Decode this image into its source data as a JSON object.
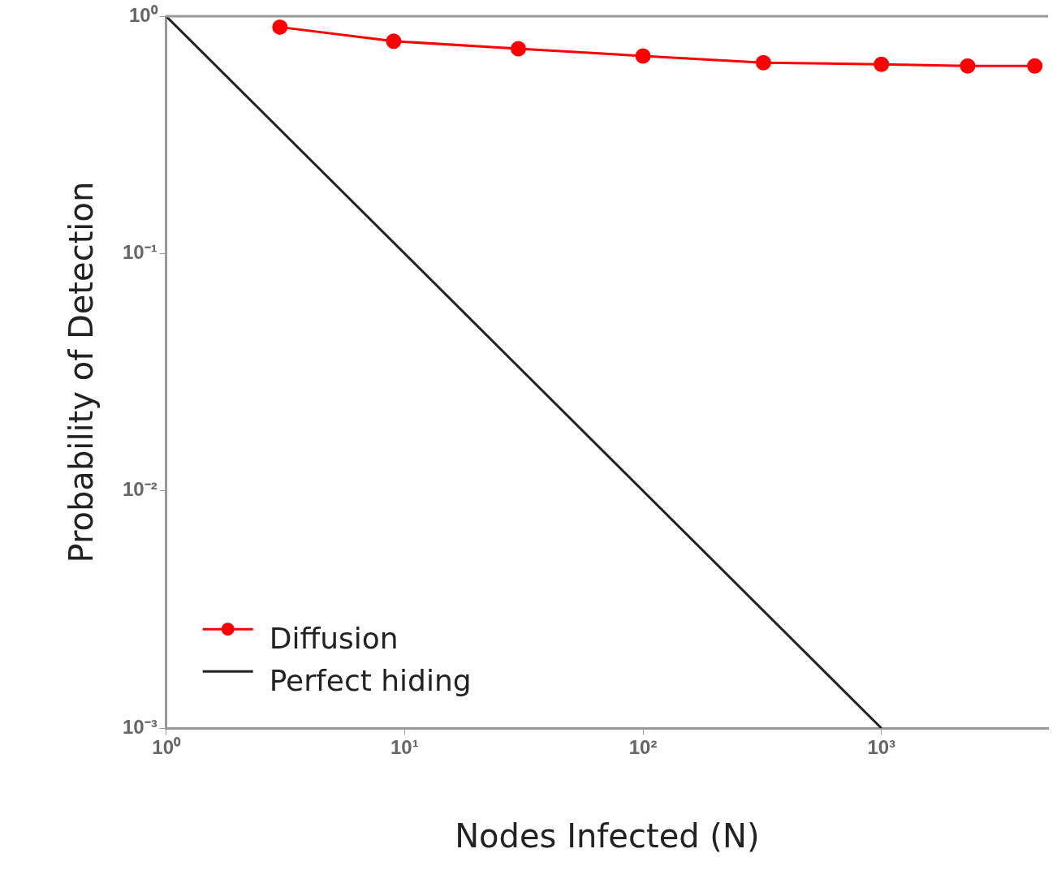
{
  "chart_data": {
    "type": "line",
    "xlabel": "Nodes Infected (N)",
    "ylabel": "Probability of Detection",
    "log": "xy",
    "xlim": [
      1,
      5000
    ],
    "ylim": [
      0.001,
      1
    ],
    "xticks": [
      {
        "value": 1,
        "label": "10⁰"
      },
      {
        "value": 10,
        "label": "10¹"
      },
      {
        "value": 100,
        "label": "10²"
      },
      {
        "value": 1000,
        "label": "10³"
      }
    ],
    "yticks": [
      {
        "value": 0.001,
        "label": "10⁻³"
      },
      {
        "value": 0.01,
        "label": "10⁻²"
      },
      {
        "value": 0.1,
        "label": "10⁻¹"
      },
      {
        "value": 1,
        "label": "10⁰"
      }
    ],
    "grid": false,
    "legend": "bottom left",
    "series": [
      {
        "name": "Diffusion",
        "color": "#ff0000",
        "marker": "circle",
        "x": [
          3,
          9,
          30,
          100,
          320,
          1000,
          2300,
          4400
        ],
        "values": [
          0.9,
          0.785,
          0.73,
          0.68,
          0.637,
          0.627,
          0.617,
          0.617
        ]
      },
      {
        "name": "Perfect hiding",
        "color": "#222222",
        "marker": "none",
        "x": [
          1,
          1000
        ],
        "values": [
          1,
          0.001
        ]
      }
    ]
  }
}
